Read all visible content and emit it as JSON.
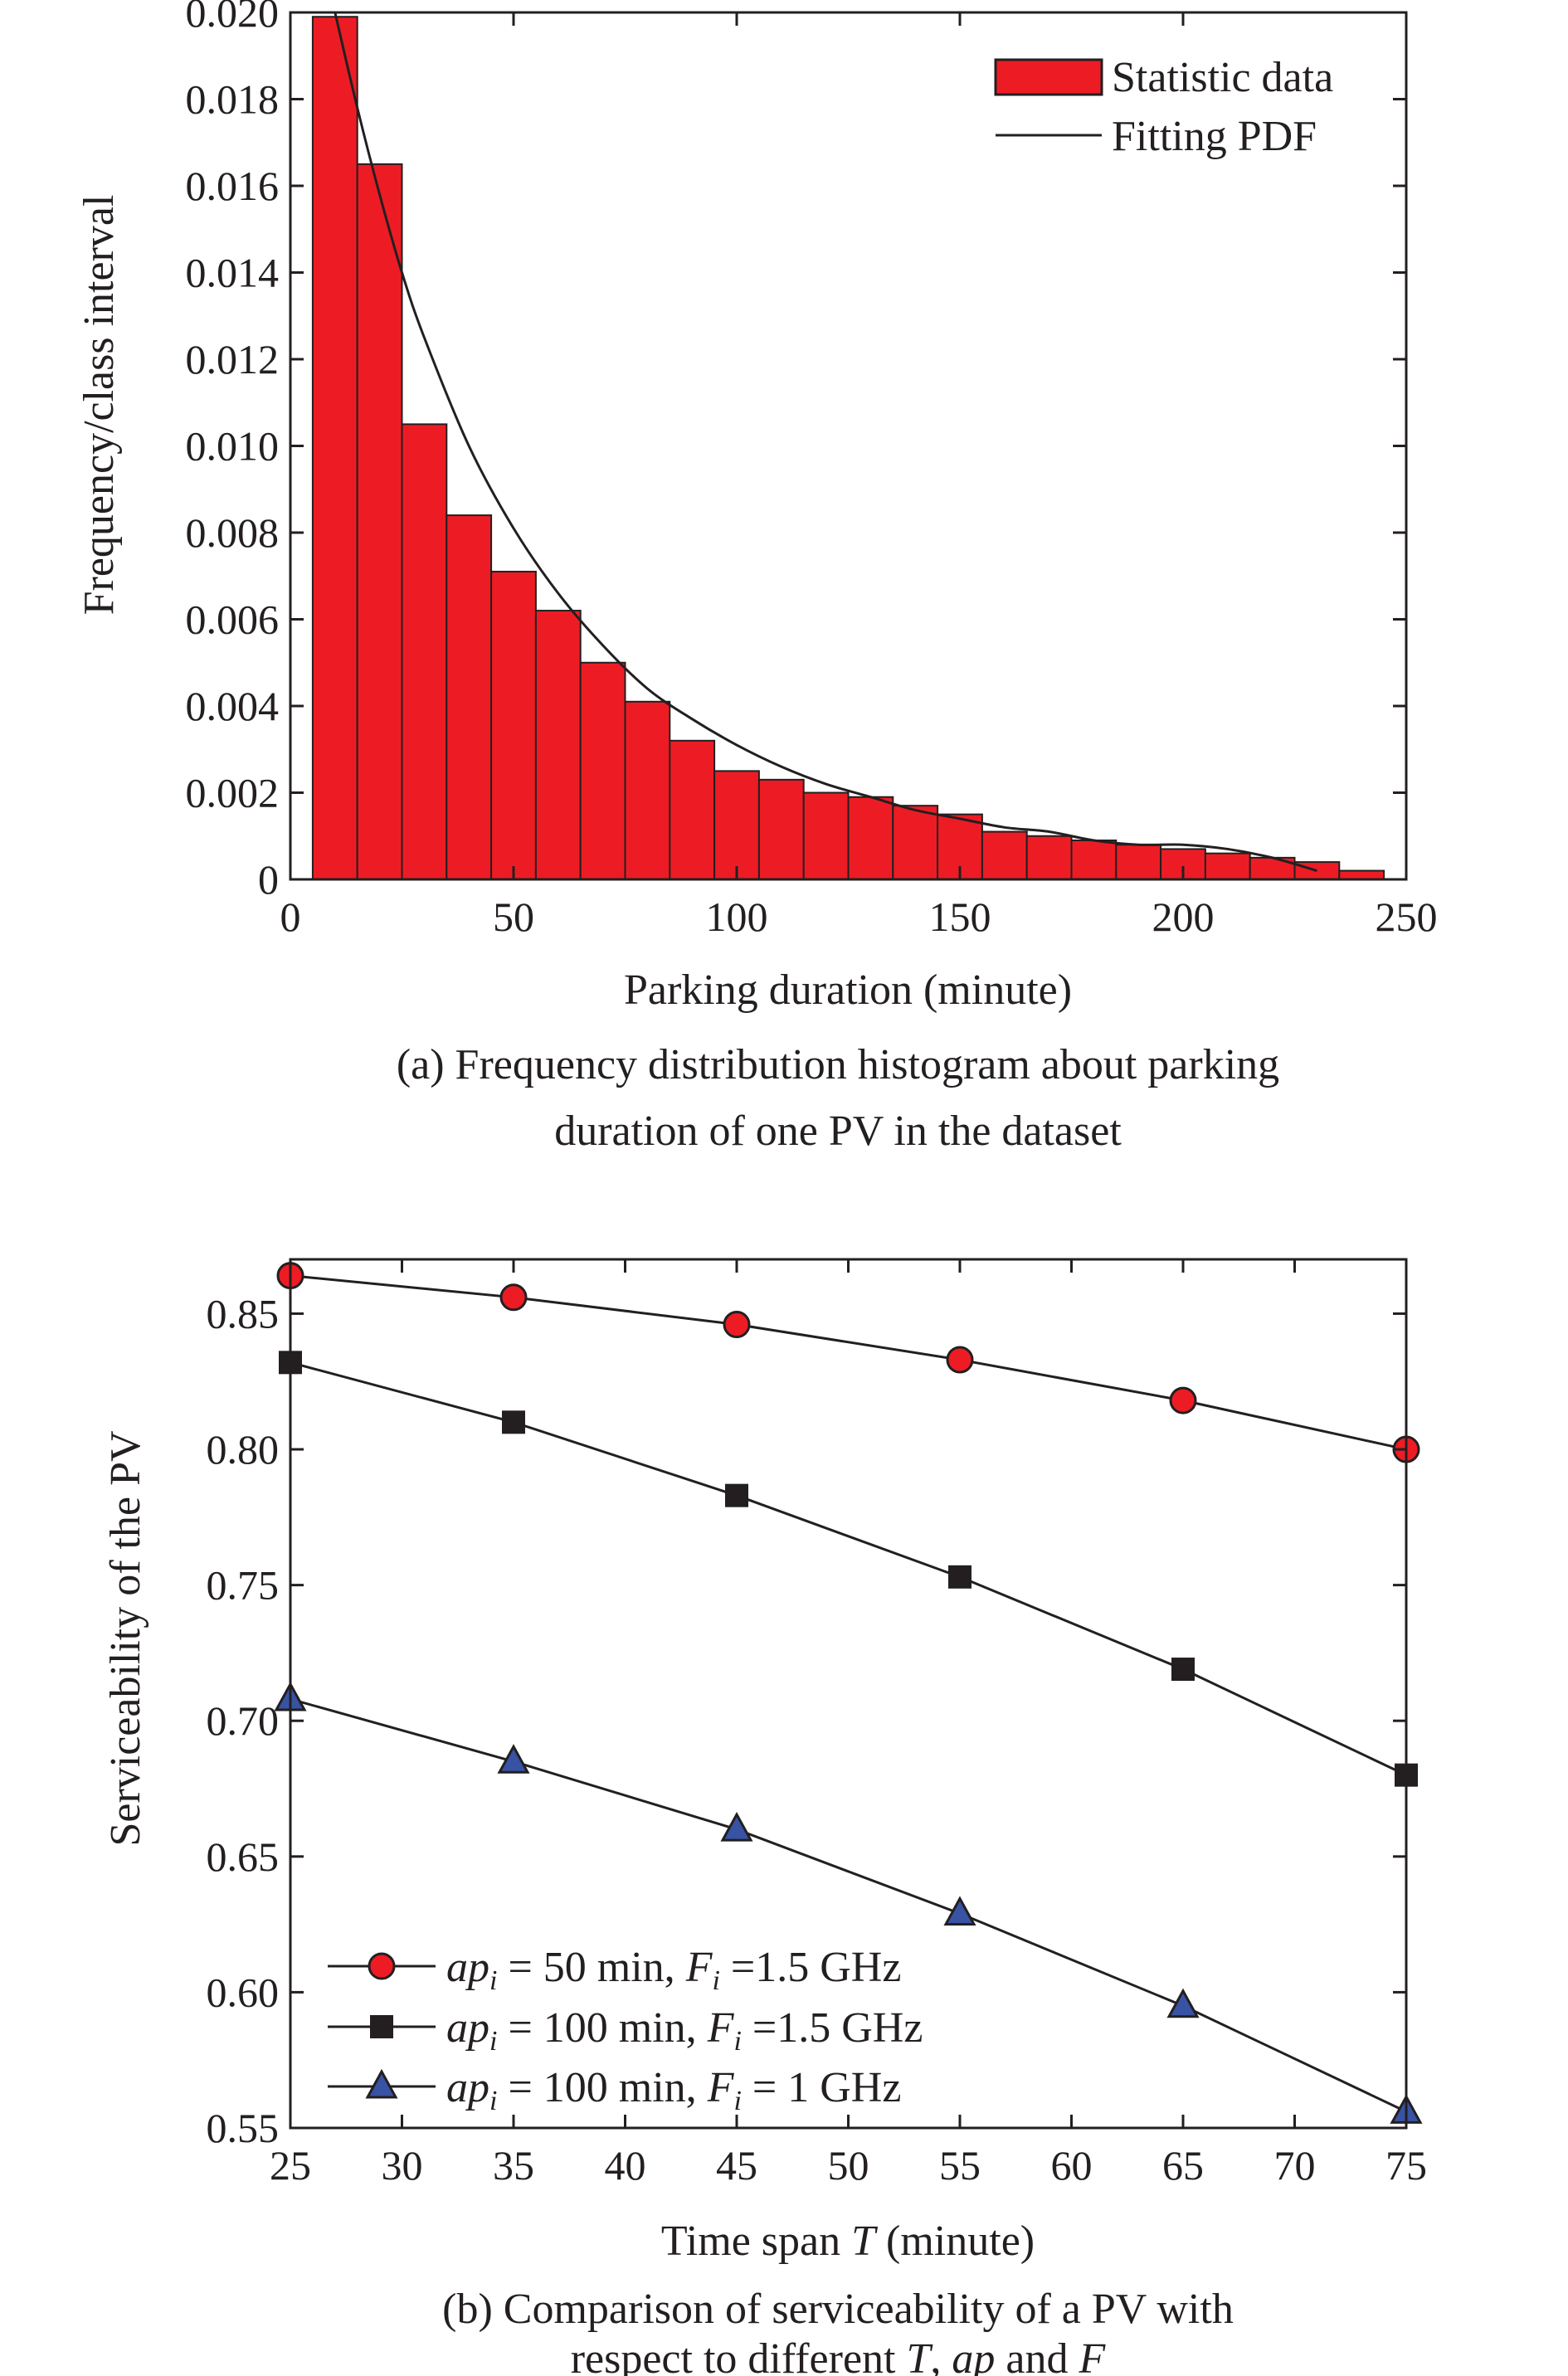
{
  "chart_data": [
    {
      "type": "bar",
      "title": "",
      "xlabel": "Parking duration (minute)",
      "ylabel": "Frequency/class interval",
      "xlim": [
        0,
        250
      ],
      "ylim": [
        0,
        0.02
      ],
      "xticks": [
        0,
        50,
        100,
        150,
        200,
        250
      ],
      "yticks": [
        "0",
        "0.002",
        "0.004",
        "0.006",
        "0.008",
        "0.010",
        "0.012",
        "0.014",
        "0.016",
        "0.018",
        "0.020"
      ],
      "bin_width": 10,
      "bin_starts": [
        5,
        15,
        25,
        35,
        45,
        55,
        65,
        75,
        85,
        95,
        105,
        115,
        125,
        135,
        145,
        155,
        165,
        175,
        185,
        195,
        205,
        215,
        225,
        235
      ],
      "values": [
        0.0199,
        0.0165,
        0.0105,
        0.0084,
        0.0071,
        0.0062,
        0.005,
        0.0041,
        0.0032,
        0.0025,
        0.0023,
        0.002,
        0.0019,
        0.0017,
        0.0015,
        0.0011,
        0.001,
        0.0009,
        0.0008,
        0.0007,
        0.0006,
        0.0005,
        0.0004,
        0.0002
      ],
      "fit": {
        "x": [
          10,
          15,
          20,
          25,
          30,
          40,
          50,
          60,
          70,
          80,
          90,
          100,
          110,
          120,
          130,
          140,
          150,
          160,
          170,
          180,
          190,
          200,
          210,
          220,
          230
        ],
        "y": [
          0.02,
          0.0178,
          0.0158,
          0.014,
          0.0125,
          0.01,
          0.0081,
          0.0066,
          0.0054,
          0.0044,
          0.0037,
          0.0031,
          0.0026,
          0.0022,
          0.0019,
          0.0016,
          0.0014,
          0.0012,
          0.0011,
          0.0009,
          0.0008,
          0.0008,
          0.0007,
          0.0005,
          0.0002
        ]
      },
      "legend": {
        "position": "top-right",
        "entries": [
          "Statistic data",
          "Fitting PDF"
        ]
      },
      "colors": {
        "bar": "#ed1c24",
        "bar_edge": "#231f20",
        "fit": "#231f20"
      },
      "caption": [
        "(a) Frequency distribution histogram about parking",
        "duration of one PV in the dataset"
      ]
    },
    {
      "type": "line",
      "title": "",
      "xlabel_parts": [
        "Time span ",
        "T",
        " (minute)"
      ],
      "ylabel": "Serviceability of  the PV",
      "xlim": [
        25,
        75
      ],
      "ylim": [
        0.55,
        0.87
      ],
      "xticks": [
        25,
        30,
        35,
        40,
        45,
        50,
        55,
        60,
        65,
        70,
        75
      ],
      "yticks": [
        "0.55",
        "0.60",
        "0.65",
        "0.70",
        "0.75",
        "0.80",
        "0.85"
      ],
      "x": [
        25,
        35,
        45,
        55,
        65,
        75
      ],
      "series": [
        {
          "values": [
            0.864,
            0.856,
            0.846,
            0.833,
            0.818,
            0.8
          ],
          "marker": "circle",
          "color": "#ed1c24",
          "label_parts": [
            "ap",
            "i",
            " = 50 min, ",
            "F",
            "i",
            " =1.5 GHz"
          ]
        },
        {
          "values": [
            0.832,
            0.81,
            0.783,
            0.753,
            0.719,
            0.68
          ],
          "marker": "square",
          "color": "#231f20",
          "label_parts": [
            "ap",
            "i",
            " = 100 min, ",
            "F",
            "i",
            " =1.5 GHz"
          ]
        },
        {
          "values": [
            0.708,
            0.685,
            0.66,
            0.629,
            0.595,
            0.556
          ],
          "marker": "triangle",
          "color": "#3853a4",
          "label_parts": [
            "ap",
            "i",
            " = 100 min, ",
            "F",
            "i",
            " = 1 GHz"
          ]
        }
      ],
      "legend": {
        "position": "bottom-left"
      },
      "caption": [
        {
          "parts": [
            "(b) Comparison of serviceability of a PV with"
          ]
        },
        {
          "parts": [
            "respect to different ",
            "T",
            ", ",
            "ap",
            " and ",
            "F"
          ]
        }
      ]
    }
  ]
}
